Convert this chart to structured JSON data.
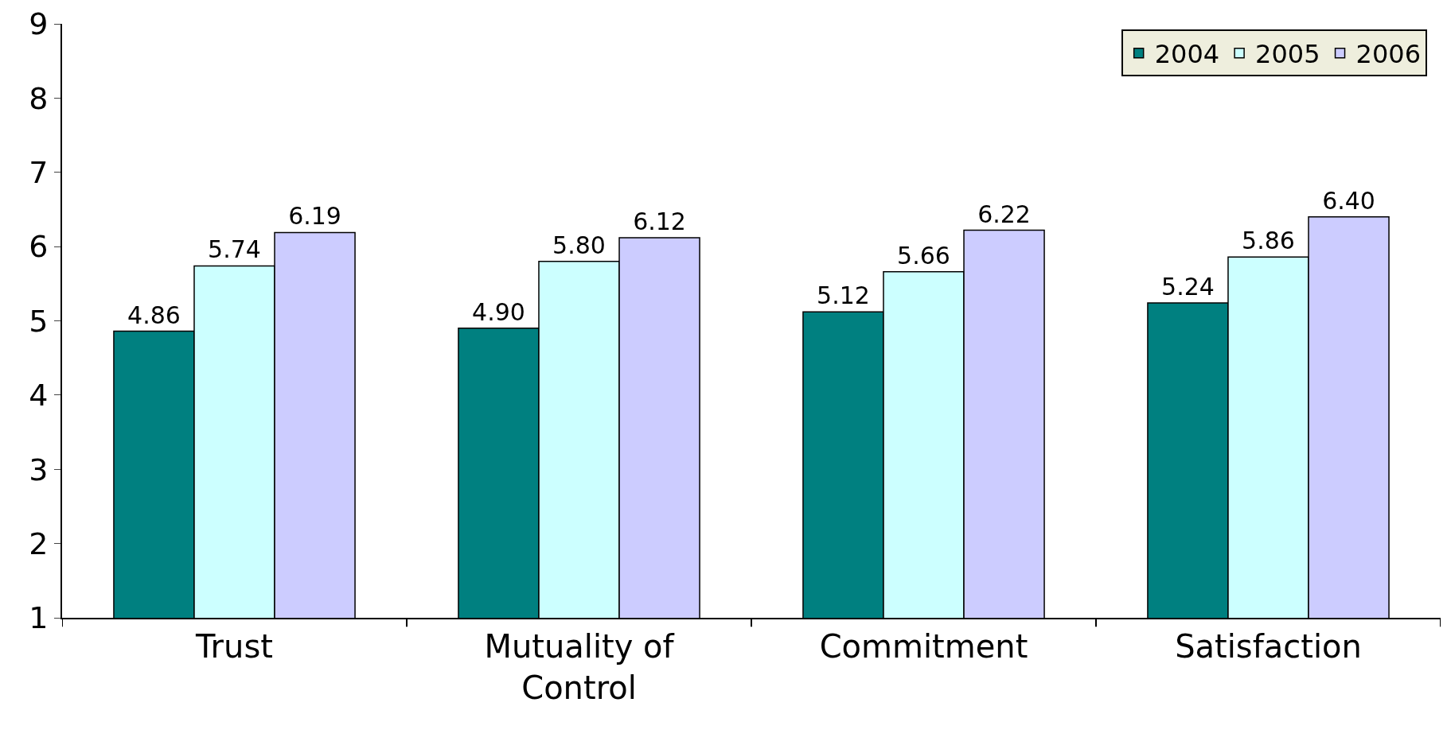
{
  "chart_data": {
    "type": "bar",
    "categories": [
      "Trust",
      "Mutuality of Control",
      "Commitment",
      "Satisfaction"
    ],
    "series": [
      {
        "name": "2004",
        "color": "#008080",
        "values": [
          4.86,
          4.9,
          5.12,
          5.24
        ],
        "value_labels": [
          "4.86",
          "4.90",
          "5.12",
          "5.24"
        ]
      },
      {
        "name": "2005",
        "color": "#ccffff",
        "values": [
          5.74,
          5.8,
          5.66,
          5.86
        ],
        "value_labels": [
          "5.74",
          "5.80",
          "5.66",
          "5.86"
        ]
      },
      {
        "name": "2006",
        "color": "#ccccff",
        "values": [
          6.19,
          6.12,
          6.22,
          6.4
        ],
        "value_labels": [
          "6.19",
          "6.12",
          "6.22",
          "6.40"
        ]
      }
    ],
    "ylim": [
      1,
      9
    ],
    "yticks": [
      1,
      2,
      3,
      4,
      5,
      6,
      7,
      8,
      9
    ],
    "legend": "top right"
  }
}
